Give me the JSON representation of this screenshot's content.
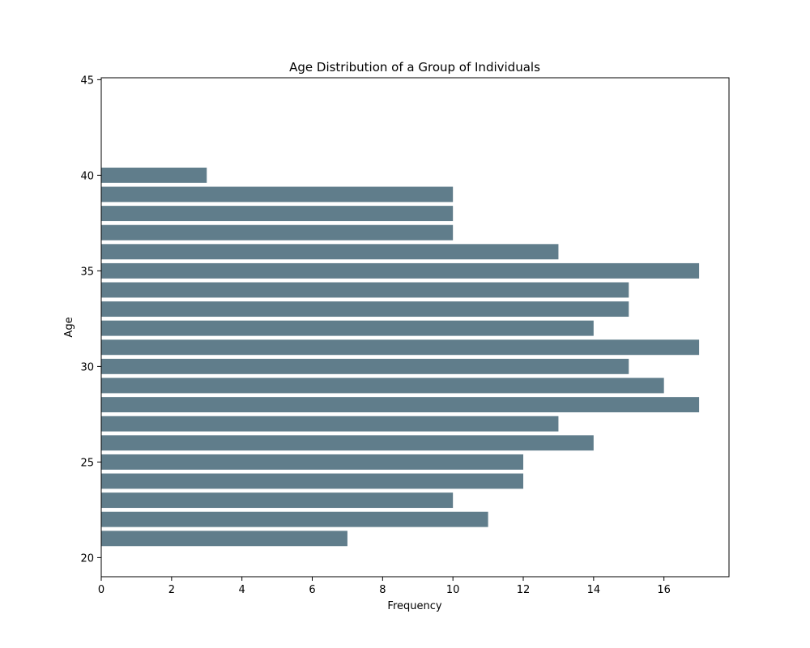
{
  "chart_data": {
    "type": "bar",
    "orientation": "horizontal",
    "title": "Age Distribution of a Group of Individuals",
    "xlabel": "Frequency",
    "ylabel": "Age",
    "categories": [
      21,
      22,
      23,
      24,
      25,
      26,
      27,
      28,
      29,
      30,
      31,
      32,
      33,
      34,
      35,
      36,
      37,
      38,
      39,
      40
    ],
    "values": [
      7,
      11,
      10,
      12,
      12,
      14,
      13,
      17,
      16,
      15,
      17,
      14,
      15,
      15,
      17,
      13,
      10,
      10,
      10,
      3
    ],
    "xlim": [
      0,
      17.85
    ],
    "ylim": [
      19,
      45.1
    ],
    "xticks": [
      "0",
      "2",
      "4",
      "6",
      "8",
      "10",
      "12",
      "14",
      "16"
    ],
    "yticks": [
      "20",
      "25",
      "30",
      "35",
      "40",
      "45"
    ],
    "bar_color": "#607d8b",
    "grid": false,
    "legend": "none"
  }
}
